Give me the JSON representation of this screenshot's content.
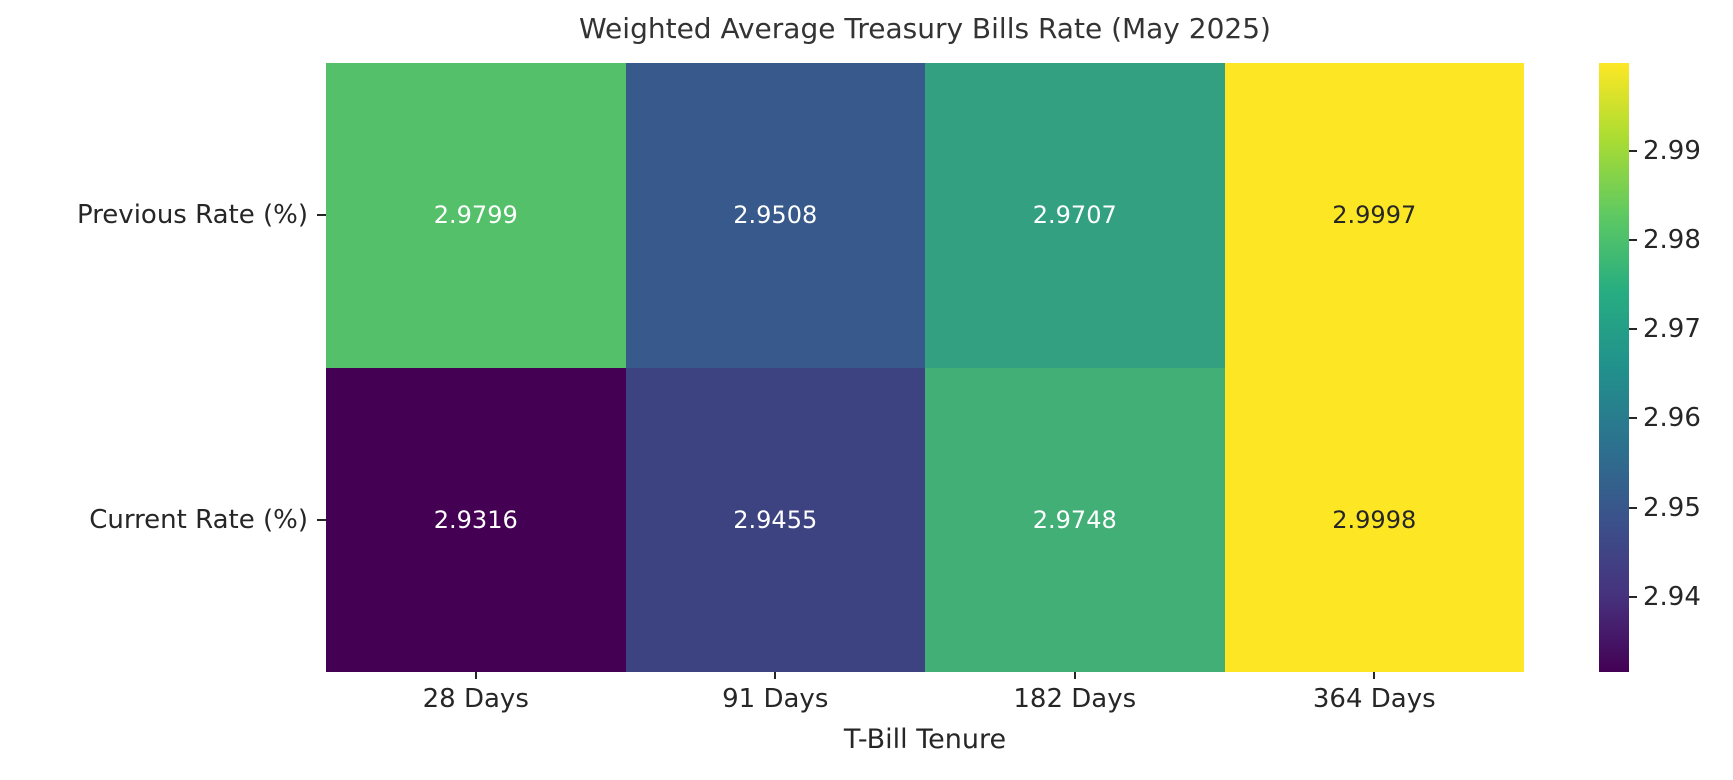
{
  "figure": {
    "background": "#ffffff",
    "text_color": "#262626",
    "title_color": "#333333"
  },
  "chart_data": {
    "type": "heatmap",
    "title": "Weighted Average Treasury Bills Rate (May 2025)",
    "xlabel": "T-Bill Tenure",
    "ylabel": "",
    "columns": [
      "28 Days",
      "91 Days",
      "182 Days",
      "364 Days"
    ],
    "rows": [
      "Previous Rate (%)",
      "Current Rate (%)"
    ],
    "values": [
      [
        2.9799,
        2.9508,
        2.9707,
        2.9997
      ],
      [
        2.9316,
        2.9455,
        2.9748,
        2.9998
      ]
    ],
    "value_labels": [
      [
        "2.9799",
        "2.9508",
        "2.9707",
        "2.9997"
      ],
      [
        "2.9316",
        "2.9455",
        "2.9748",
        "2.9998"
      ]
    ],
    "cell_colors": [
      [
        "#54c069",
        "#38598b",
        "#33a181",
        "#fde725"
      ],
      [
        "#440154",
        "#3d4381",
        "#42af76",
        "#fde725"
      ]
    ],
    "annot_colors": [
      [
        "#ffffff",
        "#ffffff",
        "#ffffff",
        "#262626"
      ],
      [
        "#ffffff",
        "#ffffff",
        "#ffffff",
        "#262626"
      ]
    ],
    "colormap": "viridis",
    "grid_on": false,
    "colorbar": {
      "position": "right",
      "min": 2.9316,
      "max": 2.9998,
      "ticks": [
        "2.94",
        "2.95",
        "2.96",
        "2.97",
        "2.98",
        "2.99"
      ],
      "tick_values": [
        2.94,
        2.95,
        2.96,
        2.97,
        2.98,
        2.99
      ],
      "gradient_stops": [
        "#440154",
        "#46327e",
        "#3b528b",
        "#2c728e",
        "#21918c",
        "#27ad81",
        "#5ec962",
        "#aadc32",
        "#fde725"
      ]
    }
  }
}
